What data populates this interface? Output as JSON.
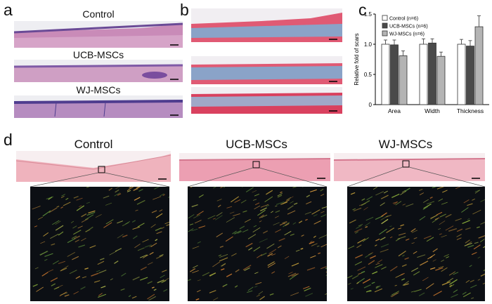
{
  "panel_letters": {
    "a": "a",
    "b": "b",
    "c": "c",
    "d": "d"
  },
  "panel_a": {
    "labels": [
      "Control",
      "UCB-MSCs",
      "WJ-MSCs"
    ]
  },
  "panel_d": {
    "labels": [
      "Control",
      "UCB-MSCs",
      "WJ-MSCs"
    ]
  },
  "colors": {
    "he_pink": "#c86fa6",
    "he_purple": "#7a5aa0",
    "masson_red": "#d9415f",
    "masson_blue": "#8aa3c8",
    "picro_pink": "#efb3bd",
    "control_bar": "#ffffff",
    "ucb_bar": "#4a4a4a",
    "wj_bar": "#b4b4b4"
  },
  "chart_data": {
    "type": "bar",
    "title": "",
    "xlabel": "",
    "ylabel": "Relative fold of scars",
    "categories": [
      "Area",
      "Width",
      "Thickness"
    ],
    "ylim": [
      0,
      1.5
    ],
    "yticks": [
      "0",
      "0.5",
      "1.0",
      "1.5"
    ],
    "grid": false,
    "legend_position": "top-left",
    "series": [
      {
        "name": "Control (n=6)",
        "values": [
          1.0,
          1.0,
          1.0
        ],
        "errors": [
          0.07,
          0.09,
          0.08
        ],
        "color": "#ffffff"
      },
      {
        "name": "UCB-MSCs (n=6)",
        "values": [
          0.99,
          1.02,
          0.97
        ],
        "errors": [
          0.08,
          0.07,
          0.09
        ],
        "color": "#4a4a4a"
      },
      {
        "name": "WJ-MSCs (n=6)",
        "values": [
          0.81,
          0.8,
          1.29
        ],
        "errors": [
          0.08,
          0.07,
          0.18
        ],
        "color": "#b4b4b4"
      }
    ]
  }
}
